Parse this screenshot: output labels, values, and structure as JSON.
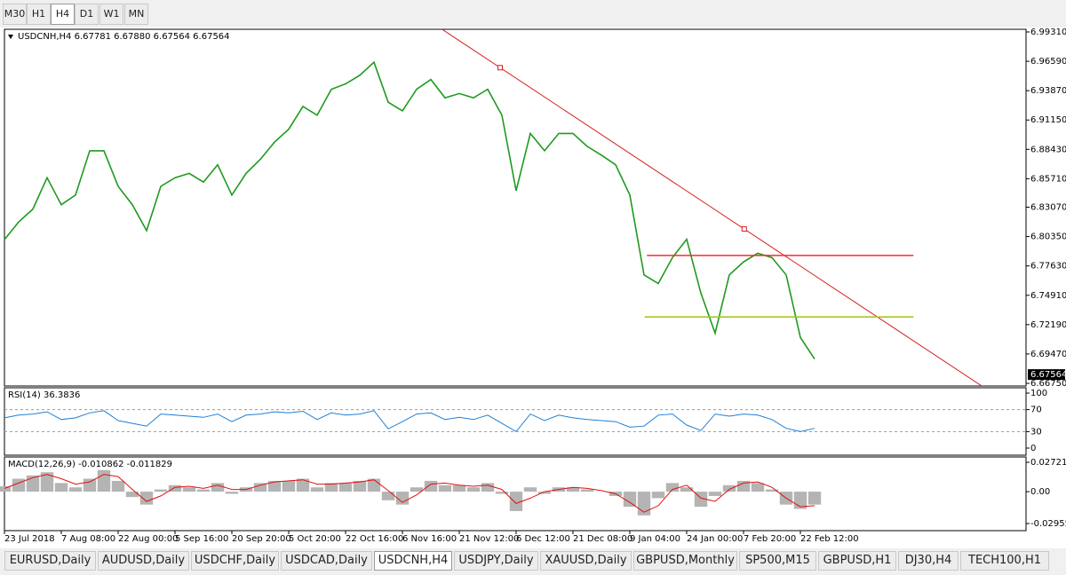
{
  "timeframes": {
    "items": [
      "M30",
      "H1",
      "H4",
      "D1",
      "W1",
      "MN"
    ],
    "active": 2
  },
  "symbol_tabs": {
    "items": [
      "EURUSD,Daily",
      "AUDUSD,Daily",
      "USDCHF,Daily",
      "USDCAD,Daily",
      "USDCNH,H4",
      "USDJPY,Daily",
      "XAUUSD,Daily",
      "GBPUSD,Monthly",
      "SP500,M15",
      "GBPUSD,H1",
      "DJ30,H4",
      "TECH100,H1"
    ],
    "active": 4
  },
  "chart_data": [
    {
      "type": "line",
      "title": "USDCNH,H4 6.67781 6.67880 6.67564 6.67564",
      "x": [
        0,
        2,
        4,
        6,
        8,
        10,
        12,
        14,
        16,
        18,
        20,
        22,
        24,
        26,
        28,
        30,
        32,
        34,
        36,
        38,
        40,
        42,
        44,
        46,
        48,
        50,
        52,
        54,
        56,
        58,
        60,
        62,
        64,
        66,
        68,
        70,
        72,
        74,
        76,
        78,
        80,
        82,
        84,
        86,
        88,
        90,
        92,
        94,
        96,
        98,
        100,
        102,
        104,
        106,
        108,
        110,
        112,
        114
      ],
      "series": [
        {
          "name": "USDCNH",
          "color": "#1f9a1f",
          "values": [
            6.8007,
            6.817,
            6.829,
            6.858,
            6.833,
            6.842,
            6.883,
            6.883,
            6.85,
            6.833,
            6.809,
            6.85,
            6.858,
            6.862,
            6.854,
            6.87,
            6.842,
            6.862,
            6.875,
            6.891,
            6.903,
            6.924,
            6.916,
            6.94,
            6.945,
            6.953,
            6.965,
            6.928,
            6.92,
            6.94,
            6.949,
            6.932,
            6.936,
            6.932,
            6.94,
            6.916,
            6.846,
            6.899,
            6.883,
            6.899,
            6.899,
            6.887,
            6.879,
            6.87,
            6.842,
            6.768,
            6.76,
            6.784,
            6.801,
            6.751,
            6.714,
            6.768,
            6.78,
            6.788,
            6.784,
            6.768,
            6.71,
            6.69
          ]
        }
      ],
      "last_price": {
        "value": 6.67564,
        "label": "6.67564"
      },
      "xlim": [
        0,
        143.75
      ],
      "xticks": [
        {
          "value": 0,
          "label": "23 Jul 2018"
        },
        {
          "value": 8,
          "label": "7 Aug 08:00"
        },
        {
          "value": 16,
          "label": "22 Aug 00:00"
        },
        {
          "value": 24,
          "label": "5 Sep 16:00"
        },
        {
          "value": 32,
          "label": "20 Sep 20:00"
        },
        {
          "value": 40,
          "label": "5 Oct 20:00"
        },
        {
          "value": 48,
          "label": "22 Oct 16:00"
        },
        {
          "value": 56,
          "label": "6 Nov 16:00"
        },
        {
          "value": 64,
          "label": "21 Nov 12:00"
        },
        {
          "value": 72,
          "label": "6 Dec 12:00"
        },
        {
          "value": 80,
          "label": "21 Dec 08:00"
        },
        {
          "value": 88,
          "label": "9 Jan 04:00"
        },
        {
          "value": 96,
          "label": "24 Jan 00:00"
        },
        {
          "value": 104,
          "label": "7 Feb 20:00"
        },
        {
          "value": 112,
          "label": "22 Feb 12:00"
        }
      ],
      "ylim": [
        6.6675,
        6.9931
      ],
      "yticks": [
        {
          "value": 6.9931,
          "label": "6.99310"
        },
        {
          "value": 6.9659,
          "label": "6.96590"
        },
        {
          "value": 6.9387,
          "label": "6.93870"
        },
        {
          "value": 6.9115,
          "label": "6.91150"
        },
        {
          "value": 6.8843,
          "label": "6.88430"
        },
        {
          "value": 6.8571,
          "label": "6.85710"
        },
        {
          "value": 6.8307,
          "label": "6.83070"
        },
        {
          "value": 6.8035,
          "label": "6.80350"
        },
        {
          "value": 6.7763,
          "label": "6.77630"
        },
        {
          "value": 6.7491,
          "label": "6.74910"
        },
        {
          "value": 6.7219,
          "label": "6.72190"
        },
        {
          "value": 6.6947,
          "label": "6.69470"
        },
        {
          "value": 6.6675,
          "label": "6.66750"
        }
      ],
      "trend_line": {
        "color": "#d42020",
        "points": [
          [
            69.75,
            6.96
          ],
          [
            104.1,
            6.8105
          ]
        ]
      },
      "horizontal_lines": [
        {
          "value": 6.786,
          "from": 90.4,
          "to": 127.9,
          "color": "#ff2a2a"
        },
        {
          "value": 6.729,
          "from": 90.1,
          "to": 127.9,
          "color": "#a6c81e"
        }
      ]
    },
    {
      "type": "line",
      "title": "RSI(14) 36.3836",
      "series": [
        {
          "name": "RSI",
          "color": "#1e7fd6",
          "values": [
            55,
            60,
            62,
            66,
            52,
            55,
            64,
            68,
            50,
            45,
            40,
            62,
            60,
            58,
            56,
            62,
            48,
            60,
            62,
            66,
            64,
            67,
            52,
            64,
            60,
            62,
            68,
            35,
            48,
            62,
            64,
            52,
            56,
            52,
            60,
            45,
            30,
            62,
            50,
            60,
            55,
            52,
            50,
            48,
            38,
            40,
            60,
            62,
            42,
            32,
            62,
            58,
            62,
            60,
            52,
            36,
            30,
            36
          ]
        }
      ],
      "ylim": [
        0,
        100
      ],
      "yticks": [
        100,
        70,
        30,
        0
      ],
      "levels": [
        70,
        30
      ]
    },
    {
      "type": "bar",
      "title": "MACD(12,26,9) -0.010862 -0.011829",
      "series": [
        {
          "name": "MACD",
          "color": "#b4b4b4",
          "values": [
            0.005,
            0.012,
            0.015,
            0.018,
            0.008,
            0.004,
            0.012,
            0.02,
            0.01,
            -0.005,
            -0.012,
            0.002,
            0.006,
            0.004,
            0.002,
            0.008,
            -0.002,
            0.004,
            0.008,
            0.01,
            0.01,
            0.012,
            0.004,
            0.008,
            0.008,
            0.01,
            0.012,
            -0.008,
            -0.012,
            0.004,
            0.01,
            0.006,
            0.006,
            0.004,
            0.008,
            -0.002,
            -0.018,
            0.004,
            -0.002,
            0.004,
            0.004,
            0.002,
            0,
            -0.004,
            -0.014,
            -0.022,
            -0.006,
            0.008,
            0.004,
            -0.014,
            -0.004,
            0.006,
            0.01,
            0.008,
            0.002,
            -0.012,
            -0.016,
            -0.012
          ]
        },
        {
          "name": "Signal",
          "color": "#e01010",
          "values": [
            0.003,
            0.008,
            0.013,
            0.016,
            0.012,
            0.007,
            0.009,
            0.016,
            0.014,
            0.002,
            -0.009,
            -0.004,
            0.004,
            0.005,
            0.003,
            0.006,
            0.002,
            0.002,
            0.006,
            0.009,
            0.01,
            0.011,
            0.007,
            0.007,
            0.008,
            0.009,
            0.011,
            0.001,
            -0.01,
            -0.003,
            0.007,
            0.008,
            0.006,
            0.005,
            0.006,
            0.002,
            -0.011,
            -0.006,
            0,
            0.002,
            0.004,
            0.003,
            0.001,
            -0.002,
            -0.01,
            -0.019,
            -0.013,
            0.002,
            0.006,
            -0.006,
            -0.009,
            0.002,
            0.008,
            0.009,
            0.004,
            -0.006,
            -0.014,
            -0.013
          ]
        }
      ],
      "ylim": [
        -0.029558,
        0.027219
      ],
      "yticks": [
        0.027219,
        {
          "value": 0,
          "label": "0.00"
        },
        -0.029558
      ]
    }
  ]
}
